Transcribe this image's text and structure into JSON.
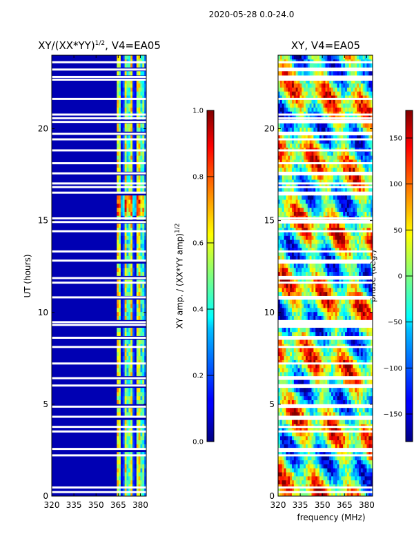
{
  "chart_data": [
    {
      "type": "heatmap",
      "suptitle": "2020-05-28 0.0-24.0",
      "title": "XY/(XX*YY)",
      "title_exp": "1/2",
      "title_suffix": ", V4=EA05",
      "xlabel": "",
      "ylabel": "UT (hours)",
      "xlim": [
        320,
        384
      ],
      "ylim": [
        0,
        24
      ],
      "xticks": [
        320,
        335,
        350,
        365,
        380
      ],
      "yticks": [
        0,
        5,
        10,
        15,
        20
      ],
      "colorbar": {
        "label": "XY amp. / (XX*YY amp)",
        "label_exp": "1/2",
        "range": [
          0.0,
          1.0
        ],
        "ticks": [
          "0.0",
          "0.2",
          "0.4",
          "0.6",
          "0.8",
          "1.0"
        ],
        "colormap": "jet"
      },
      "description_values": {
        "background_level": 0.05,
        "active_band_mhz": [
          363,
          384
        ],
        "active_band_level": [
          0.3,
          0.6
        ],
        "peak_ut_hours": [
          15.3,
          16.3
        ],
        "peak_level": 0.75
      }
    },
    {
      "type": "heatmap",
      "title": "XY, V4=EA05",
      "xlabel": "frequency (MHz)",
      "ylabel": "",
      "xlim": [
        320,
        384
      ],
      "ylim": [
        0,
        24
      ],
      "xticks": [
        320,
        335,
        350,
        365,
        380
      ],
      "yticks": [
        0,
        5,
        10,
        15,
        20
      ],
      "colorbar": {
        "label": "phase (deg.)",
        "range": [
          -180,
          180
        ],
        "ticks": [
          "150",
          "100",
          "50",
          "0",
          "−50",
          "−100",
          "−150"
        ],
        "tick_values": [
          150,
          100,
          50,
          0,
          -50,
          -100,
          -150
        ],
        "colormap": "jet"
      }
    }
  ],
  "flag_gaps_ut_hours": [
    0.2,
    0.45,
    2.2,
    2.55,
    3.5,
    3.75,
    4.3,
    4.85,
    6.0,
    6.4,
    7.2,
    8.1,
    8.6,
    9.3,
    9.45,
    10.8,
    11.6,
    11.85,
    12.8,
    13.3,
    14.4,
    14.9,
    15.1,
    16.5,
    16.8,
    17.0,
    17.55,
    18.1,
    18.8,
    19.4,
    19.7,
    20.35,
    20.55,
    20.75,
    21.6,
    22.65,
    22.8,
    23.2,
    23.6
  ]
}
